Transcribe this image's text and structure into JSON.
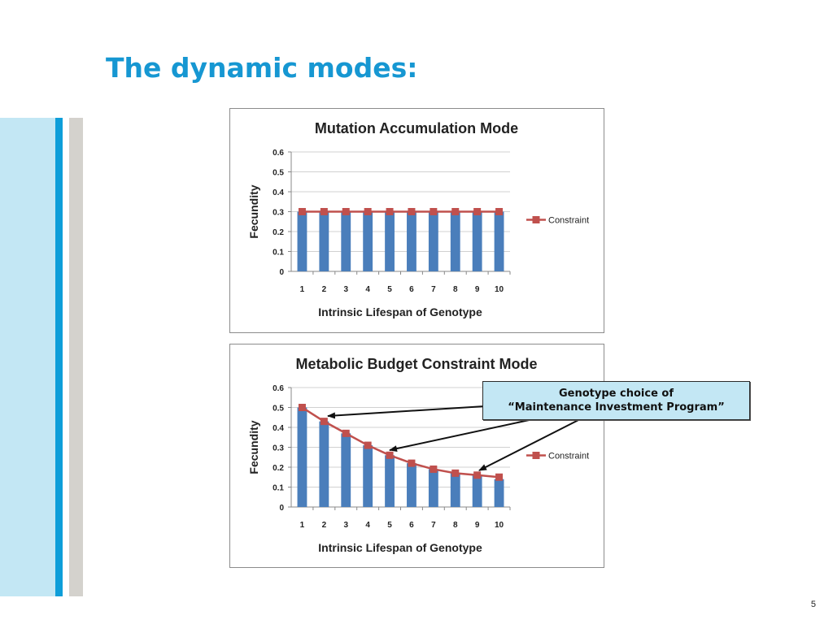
{
  "slide": {
    "title": "The dynamic modes:",
    "page_number": "5"
  },
  "colors": {
    "accent": "#1697d2",
    "bar": "#4a7ebb",
    "line": "#c0504d",
    "callout_fill": "#c3e7f4"
  },
  "callout": {
    "line1": "Genotype choice of",
    "line2": "“Maintenance Investment Program”"
  },
  "chart_data": [
    {
      "type": "bar",
      "title": "Mutation Accumulation Mode",
      "xlabel": "Intrinsic Lifespan of Genotype",
      "ylabel": "Fecundity",
      "categories": [
        "1",
        "2",
        "3",
        "4",
        "5",
        "6",
        "7",
        "8",
        "9",
        "10"
      ],
      "ylim": [
        0,
        0.6
      ],
      "yticks": [
        "0",
        "0.1",
        "0.2",
        "0.3",
        "0.4",
        "0.5",
        "0.6"
      ],
      "grid": true,
      "legend_position": "right",
      "bars": [
        0.3,
        0.3,
        0.3,
        0.3,
        0.3,
        0.3,
        0.3,
        0.3,
        0.3,
        0.3
      ],
      "series": [
        {
          "name": "Constraint",
          "type": "line",
          "values": [
            0.3,
            0.3,
            0.3,
            0.3,
            0.3,
            0.3,
            0.3,
            0.3,
            0.3,
            0.3
          ]
        }
      ]
    },
    {
      "type": "bar",
      "title": "Metabolic Budget Constraint Mode",
      "xlabel": "Intrinsic Lifespan of Genotype",
      "ylabel": "Fecundity",
      "categories": [
        "1",
        "2",
        "3",
        "4",
        "5",
        "6",
        "7",
        "8",
        "9",
        "10"
      ],
      "ylim": [
        0,
        0.6
      ],
      "yticks": [
        "0",
        "0.1",
        "0.2",
        "0.3",
        "0.4",
        "0.5",
        "0.6"
      ],
      "grid": true,
      "legend_position": "right",
      "bars": [
        0.5,
        0.43,
        0.37,
        0.31,
        0.26,
        0.22,
        0.19,
        0.17,
        0.16,
        0.14
      ],
      "series": [
        {
          "name": "Constraint",
          "type": "line",
          "values": [
            0.5,
            0.43,
            0.37,
            0.31,
            0.26,
            0.22,
            0.19,
            0.17,
            0.16,
            0.15
          ]
        }
      ]
    }
  ]
}
